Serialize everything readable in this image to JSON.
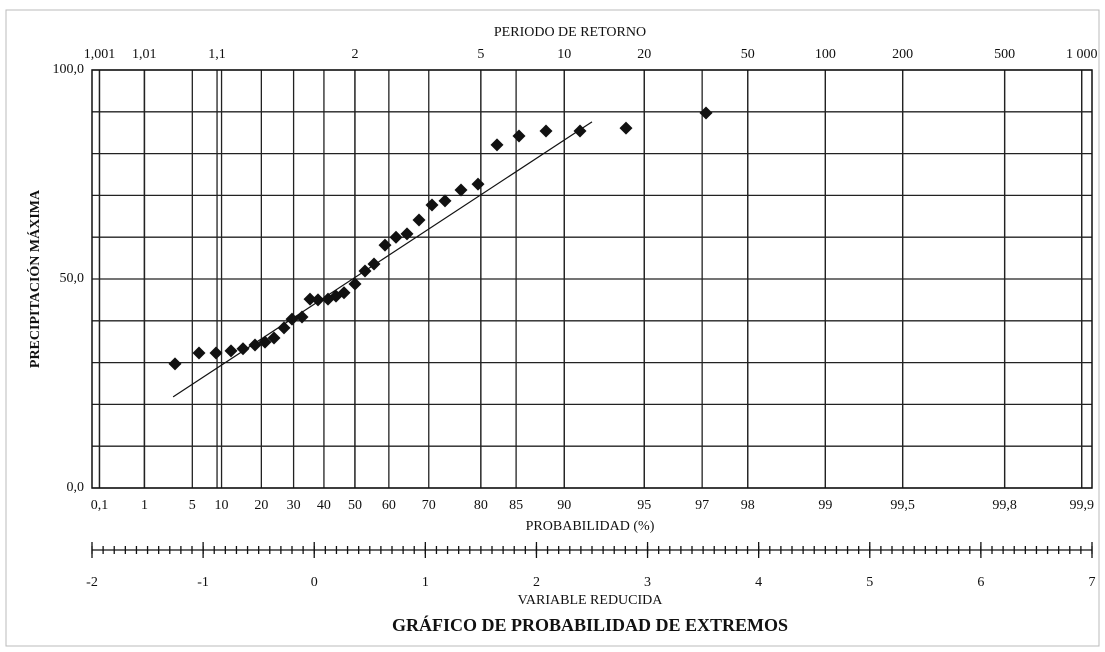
{
  "chart_data": {
    "type": "scatter",
    "title": "GRÁFICO DE PROBABILIDAD DE EXTREMOS",
    "ylabel": "PRECIPITACIÓN MÁXIMA",
    "xlabel": "VARIABLE REDUCIDA",
    "xscale": "gumbel",
    "xlim": [
      -2,
      7
    ],
    "xticks": [
      -2,
      -1,
      0,
      1,
      2,
      3,
      4,
      5,
      6,
      7
    ],
    "xminor_step": 0.1,
    "ylim": [
      0,
      100
    ],
    "yticks": [
      {
        "value": 0,
        "label": "0,0"
      },
      {
        "value": 50,
        "label": "50,0"
      },
      {
        "value": 100,
        "label": "100,0"
      }
    ],
    "yminor_ticks": [
      10,
      20,
      30,
      40,
      60,
      70,
      80,
      90
    ],
    "grid": true,
    "probability_axis": {
      "label": "PROBABILIDAD (%)",
      "ticks": [
        {
          "value": 0.1,
          "label": "0,1"
        },
        1,
        5,
        10,
        20,
        30,
        40,
        50,
        60,
        70,
        80,
        85,
        90,
        95,
        97,
        98,
        99,
        {
          "value": 99.5,
          "label": "99,5"
        },
        {
          "value": 99.8,
          "label": "99,8"
        },
        {
          "value": 99.9,
          "label": "99,9"
        }
      ]
    },
    "return_period_axis": {
      "label": "PERIODO DE RETORNO",
      "ticks": [
        {
          "value": 1.001,
          "label": "1,001"
        },
        {
          "value": 1.01,
          "label": "1,01"
        },
        {
          "value": 1.1,
          "label": "1,1"
        },
        2,
        5,
        10,
        20,
        50,
        100,
        200,
        500,
        {
          "value": 1000,
          "label": "1 000"
        }
      ]
    },
    "color": "#111111",
    "x": [
      -1.253,
      -1.037,
      -0.884,
      -0.749,
      -0.641,
      -0.533,
      -0.443,
      -0.362,
      -0.272,
      -0.2,
      -0.11,
      -0.038,
      0.034,
      0.124,
      0.196,
      0.268,
      0.367,
      0.457,
      0.538,
      0.637,
      0.736,
      0.835,
      0.943,
      1.06,
      1.177,
      1.321,
      1.474,
      1.645,
      1.843,
      2.086,
      2.392,
      2.806,
      3.526
    ],
    "values": [
      29.7,
      32.3,
      32.3,
      32.8,
      33.3,
      34.2,
      34.9,
      35.9,
      38.3,
      40.4,
      40.9,
      45.2,
      45.0,
      45.2,
      45.9,
      46.7,
      48.8,
      51.9,
      53.6,
      58.1,
      60.0,
      60.8,
      64.1,
      67.7,
      68.7,
      71.3,
      72.7,
      82.1,
      84.2,
      85.4,
      85.4,
      86.1,
      89.7
    ],
    "trendline": {
      "x": [
        -1.27,
        2.5
      ],
      "y": [
        21.8,
        87.6
      ]
    }
  }
}
